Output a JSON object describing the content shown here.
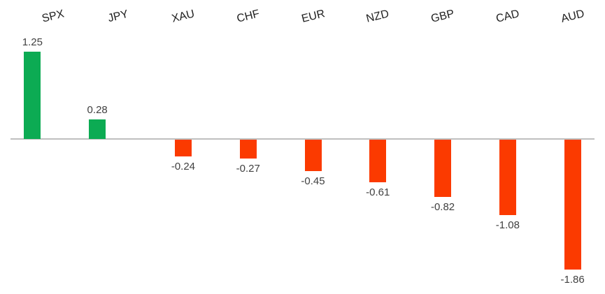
{
  "chart_data": {
    "type": "bar",
    "title": "",
    "xlabel": "",
    "ylabel": "",
    "categories": [
      "SPX",
      "JPY",
      "XAU",
      "CHF",
      "EUR",
      "NZD",
      "GBP",
      "CAD",
      "AUD"
    ],
    "values": [
      1.25,
      0.28,
      -0.24,
      -0.27,
      -0.45,
      -0.61,
      -0.82,
      -1.08,
      -1.86
    ],
    "value_labels": [
      "1.25",
      "0.28",
      "-0.24",
      "-0.27",
      "-0.45",
      "-0.61",
      "-0.82",
      "-1.08",
      "-1.86"
    ],
    "series": [
      {
        "name": "positive",
        "values": [
          1.25,
          0.28,
          null,
          null,
          null,
          null,
          null,
          null,
          null
        ]
      },
      {
        "name": "negative",
        "values": [
          null,
          null,
          -0.24,
          -0.27,
          -0.45,
          -0.61,
          -0.82,
          -1.08,
          -1.86
        ]
      }
    ],
    "ylim": [
      -2.0,
      1.4
    ],
    "grid": false,
    "legend_position": "none",
    "category_label_position": "top",
    "category_label_rotation_deg": -14,
    "colors": {
      "positive_bar": "#0CAB53",
      "negative_bar": "#FB3A00",
      "axis_line": "#BFBFBF",
      "category_label": "#1F1F1F",
      "value_label": "#404040",
      "background": "#FFFFFF"
    }
  }
}
